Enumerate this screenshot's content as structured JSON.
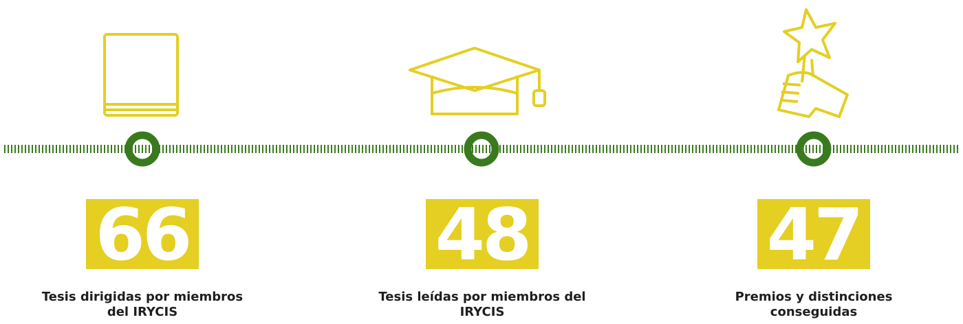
{
  "stats": [
    {
      "value": 66,
      "label": "Tesis dirigidas por miembros del IRYCIS"
    },
    {
      "value": 48,
      "label": "Tesis leídas por miembros del IRYCIS"
    },
    {
      "value": 47,
      "label": "Premios y distinciones conseguidas"
    }
  ]
}
